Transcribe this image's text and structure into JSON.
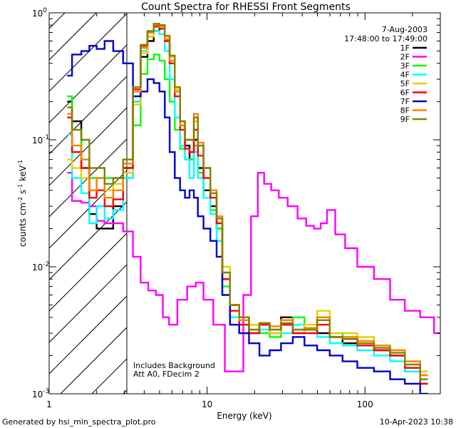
{
  "title": "Count Spectra for RHESSI Front Segments",
  "footer": {
    "left": "Generated by hsi_min_spectra_plot.pro",
    "right": "10-Apr-2023 10:38"
  },
  "annotations": {
    "date": "7-Aug-2003",
    "time_range": "17:48:00 to 17:49:00",
    "background_note": "Includes Background",
    "attenuator_note": "Att A0, FDecim 2"
  },
  "chart_data": {
    "type": "line",
    "title": "Count Spectra for RHESSI Front Segments",
    "xlabel": "Energy (keV)",
    "ylabel": "counts cm-2 s-1 keV-1",
    "xscale": "log",
    "yscale": "log",
    "xlim": [
      1.0,
      300
    ],
    "ylim": [
      0.001,
      1.0
    ],
    "x_ticks": [
      {
        "value": 1,
        "label": "1"
      },
      {
        "value": 10,
        "label": "10"
      },
      {
        "value": 100,
        "label": "100"
      }
    ],
    "y_ticks": [
      {
        "value": 1,
        "label": "10^0"
      },
      {
        "value": 0.1,
        "label": "10^-1"
      },
      {
        "value": 0.01,
        "label": "10^-2"
      },
      {
        "value": 0.001,
        "label": "10^-3"
      }
    ],
    "hatched_region": [
      1.0,
      3.0
    ],
    "series": [
      {
        "name": "1F",
        "color": "#000000",
        "x": [
          1.3,
          1.5,
          1.7,
          1.9,
          2.1,
          2.4,
          2.7,
          3.2,
          3.6,
          4.0,
          4.4,
          4.8,
          5.2,
          5.6,
          6.0,
          6.5,
          7.0,
          7.5,
          8.0,
          8.5,
          9.0,
          10,
          11,
          12,
          13,
          15,
          17,
          20,
          23,
          27,
          32,
          38,
          45,
          55,
          65,
          80,
          100,
          130,
          160,
          200,
          250
        ],
        "y": [
          0.2,
          0.14,
          0.06,
          0.026,
          0.02,
          0.02,
          0.03,
          0.06,
          0.2,
          0.45,
          0.6,
          0.72,
          0.75,
          0.6,
          0.4,
          0.25,
          0.13,
          0.09,
          0.07,
          0.1,
          0.06,
          0.04,
          0.03,
          0.02,
          0.008,
          0.005,
          0.004,
          0.003,
          0.0035,
          0.003,
          0.004,
          0.003,
          0.0032,
          0.003,
          0.0028,
          0.0025,
          0.0025,
          0.0022,
          0.002,
          0.0015,
          0.0012
        ]
      },
      {
        "name": "2F",
        "color": "#ff00ff",
        "x": [
          1.3,
          1.5,
          1.7,
          1.9,
          2.1,
          2.4,
          2.7,
          3.2,
          3.6,
          4.0,
          4.5,
          5.0,
          5.5,
          6.0,
          7.0,
          8.0,
          9.0,
          10,
          12,
          14,
          16,
          18,
          20,
          22,
          24,
          27,
          30,
          35,
          40,
          45,
          50,
          55,
          60,
          70,
          80,
          100,
          130,
          160,
          200,
          250,
          300
        ],
        "y": [
          0.055,
          0.033,
          0.032,
          0.03,
          0.023,
          0.022,
          0.022,
          0.019,
          0.012,
          0.0075,
          0.0065,
          0.006,
          0.004,
          0.0035,
          0.0055,
          0.007,
          0.0075,
          0.0055,
          0.0035,
          0.0015,
          0.0015,
          0.006,
          0.025,
          0.055,
          0.045,
          0.04,
          0.035,
          0.03,
          0.024,
          0.021,
          0.02,
          0.022,
          0.028,
          0.018,
          0.014,
          0.01,
          0.008,
          0.0055,
          0.0045,
          0.004,
          0.003
        ]
      },
      {
        "name": "3F",
        "color": "#00ff00",
        "x": [
          1.3,
          1.5,
          1.7,
          1.9,
          2.1,
          2.4,
          2.7,
          3.2,
          3.6,
          4.0,
          4.4,
          4.8,
          5.2,
          5.6,
          6.0,
          6.5,
          7.0,
          7.5,
          8.0,
          8.5,
          9.0,
          10,
          11,
          12,
          13,
          15,
          17,
          20,
          23,
          27,
          32,
          38,
          45,
          55,
          65,
          80,
          100,
          130,
          160,
          200,
          250
        ],
        "y": [
          0.22,
          0.12,
          0.07,
          0.05,
          0.05,
          0.05,
          0.05,
          0.05,
          0.13,
          0.33,
          0.43,
          0.47,
          0.42,
          0.3,
          0.2,
          0.12,
          0.085,
          0.07,
          0.07,
          0.09,
          0.055,
          0.035,
          0.028,
          0.02,
          0.007,
          0.004,
          0.003,
          0.0035,
          0.003,
          0.0028,
          0.0035,
          0.004,
          0.0032,
          0.004,
          0.003,
          0.0028,
          0.0025,
          0.0022,
          0.002,
          0.0016,
          0.0012
        ]
      },
      {
        "name": "4F",
        "color": "#00ffff",
        "x": [
          1.3,
          1.5,
          1.7,
          1.9,
          2.1,
          2.4,
          2.7,
          3.2,
          3.6,
          4.0,
          4.4,
          4.8,
          5.2,
          5.6,
          6.0,
          6.5,
          7.0,
          7.5,
          8.0,
          8.5,
          9.0,
          10,
          11,
          12,
          13,
          15,
          17,
          20,
          23,
          27,
          32,
          38,
          45,
          55,
          65,
          80,
          100,
          130,
          160,
          200,
          250
        ],
        "y": [
          0.11,
          0.05,
          0.038,
          0.022,
          0.03,
          0.024,
          0.028,
          0.05,
          0.2,
          0.5,
          0.65,
          0.72,
          0.68,
          0.5,
          0.3,
          0.15,
          0.09,
          0.07,
          0.05,
          0.08,
          0.05,
          0.035,
          0.026,
          0.016,
          0.006,
          0.004,
          0.0035,
          0.003,
          0.0032,
          0.003,
          0.003,
          0.0035,
          0.003,
          0.0028,
          0.0025,
          0.0024,
          0.0022,
          0.002,
          0.0018,
          0.0015,
          0.0012
        ]
      },
      {
        "name": "5F",
        "color": "#e8d000",
        "x": [
          1.3,
          1.5,
          1.7,
          1.9,
          2.1,
          2.4,
          2.7,
          3.2,
          3.6,
          4.0,
          4.4,
          4.8,
          5.2,
          5.6,
          6.0,
          6.5,
          7.0,
          7.5,
          8.0,
          8.5,
          9.0,
          10,
          11,
          12,
          13,
          15,
          17,
          20,
          23,
          27,
          32,
          38,
          45,
          55,
          65,
          80,
          100,
          130,
          160,
          200,
          250
        ],
        "y": [
          0.07,
          0.06,
          0.05,
          0.04,
          0.05,
          0.04,
          0.045,
          0.055,
          0.19,
          0.48,
          0.65,
          0.78,
          0.8,
          0.65,
          0.45,
          0.25,
          0.14,
          0.1,
          0.1,
          0.14,
          0.09,
          0.06,
          0.04,
          0.025,
          0.01,
          0.005,
          0.004,
          0.0035,
          0.0035,
          0.003,
          0.0038,
          0.003,
          0.0035,
          0.0045,
          0.003,
          0.003,
          0.0028,
          0.0024,
          0.0022,
          0.0018,
          0.0015
        ]
      },
      {
        "name": "6F",
        "color": "#ff0000",
        "x": [
          1.3,
          1.5,
          1.7,
          1.9,
          2.1,
          2.4,
          2.7,
          3.2,
          3.6,
          4.0,
          4.4,
          4.8,
          5.2,
          5.6,
          6.0,
          6.5,
          7.0,
          7.5,
          8.0,
          8.5,
          9.0,
          10,
          11,
          12,
          13,
          15,
          17,
          20,
          23,
          27,
          32,
          38,
          45,
          55,
          65,
          80,
          100,
          130,
          160,
          200,
          250
        ],
        "y": [
          0.15,
          0.08,
          0.06,
          0.035,
          0.04,
          0.03,
          0.034,
          0.06,
          0.25,
          0.55,
          0.7,
          0.78,
          0.75,
          0.6,
          0.4,
          0.22,
          0.12,
          0.085,
          0.08,
          0.12,
          0.075,
          0.05,
          0.035,
          0.022,
          0.008,
          0.0045,
          0.0035,
          0.003,
          0.0035,
          0.0032,
          0.0035,
          0.003,
          0.003,
          0.0035,
          0.0028,
          0.0027,
          0.0024,
          0.0022,
          0.002,
          0.0016,
          0.0012
        ]
      },
      {
        "name": "7F",
        "color": "#0000cc",
        "x": [
          1.3,
          1.5,
          1.7,
          1.9,
          2.1,
          2.4,
          2.7,
          3.2,
          3.6,
          4.0,
          4.4,
          4.8,
          5.2,
          5.6,
          6.0,
          6.5,
          7.0,
          7.5,
          8.0,
          8.5,
          9.0,
          10,
          11,
          12,
          13,
          15,
          17,
          20,
          23,
          27,
          32,
          38,
          45,
          55,
          65,
          80,
          100,
          130,
          160,
          200,
          250
        ],
        "y": [
          0.32,
          0.47,
          0.5,
          0.55,
          0.52,
          0.6,
          0.5,
          0.4,
          0.22,
          0.24,
          0.3,
          0.28,
          0.24,
          0.15,
          0.08,
          0.05,
          0.04,
          0.035,
          0.04,
          0.035,
          0.025,
          0.02,
          0.016,
          0.012,
          0.006,
          0.0035,
          0.003,
          0.0025,
          0.002,
          0.0022,
          0.0025,
          0.0028,
          0.0024,
          0.0022,
          0.002,
          0.0018,
          0.0016,
          0.0015,
          0.0013,
          0.0012,
          0.001
        ]
      },
      {
        "name": "8F",
        "color": "#ff8000",
        "x": [
          1.3,
          1.5,
          1.7,
          1.9,
          2.1,
          2.4,
          2.7,
          3.2,
          3.6,
          4.0,
          4.4,
          4.8,
          5.2,
          5.6,
          6.0,
          6.5,
          7.0,
          7.5,
          8.0,
          8.5,
          9.0,
          10,
          11,
          12,
          13,
          15,
          17,
          20,
          23,
          27,
          32,
          38,
          45,
          55,
          65,
          80,
          100,
          130,
          160,
          200,
          250
        ],
        "y": [
          0.16,
          0.09,
          0.07,
          0.04,
          0.05,
          0.035,
          0.04,
          0.065,
          0.24,
          0.53,
          0.7,
          0.8,
          0.78,
          0.62,
          0.42,
          0.24,
          0.13,
          0.1,
          0.1,
          0.16,
          0.095,
          0.06,
          0.04,
          0.025,
          0.009,
          0.005,
          0.0038,
          0.0032,
          0.0036,
          0.0034,
          0.0038,
          0.0032,
          0.0033,
          0.004,
          0.0028,
          0.0028,
          0.0026,
          0.0024,
          0.0022,
          0.0018,
          0.0014
        ]
      },
      {
        "name": "9F",
        "color": "#808000",
        "x": [
          1.3,
          1.5,
          1.7,
          1.9,
          2.1,
          2.4,
          2.7,
          3.2,
          3.6,
          4.0,
          4.4,
          4.8,
          5.2,
          5.6,
          6.0,
          6.5,
          7.0,
          7.5,
          8.0,
          8.5,
          9.0,
          10,
          11,
          12,
          13,
          15,
          17,
          20,
          23,
          27,
          32,
          38,
          45,
          55,
          65,
          80,
          100,
          130,
          160,
          200,
          250
        ],
        "y": [
          0.18,
          0.12,
          0.1,
          0.06,
          0.06,
          0.045,
          0.05,
          0.07,
          0.26,
          0.56,
          0.72,
          0.82,
          0.8,
          0.66,
          0.46,
          0.26,
          0.14,
          0.1,
          0.1,
          0.15,
          0.09,
          0.06,
          0.038,
          0.024,
          0.009,
          0.005,
          0.004,
          0.0032,
          0.0036,
          0.0032,
          0.0036,
          0.0032,
          0.0032,
          0.0038,
          0.0028,
          0.0027,
          0.0025,
          0.0023,
          0.0021,
          0.0017,
          0.0013
        ]
      }
    ]
  }
}
